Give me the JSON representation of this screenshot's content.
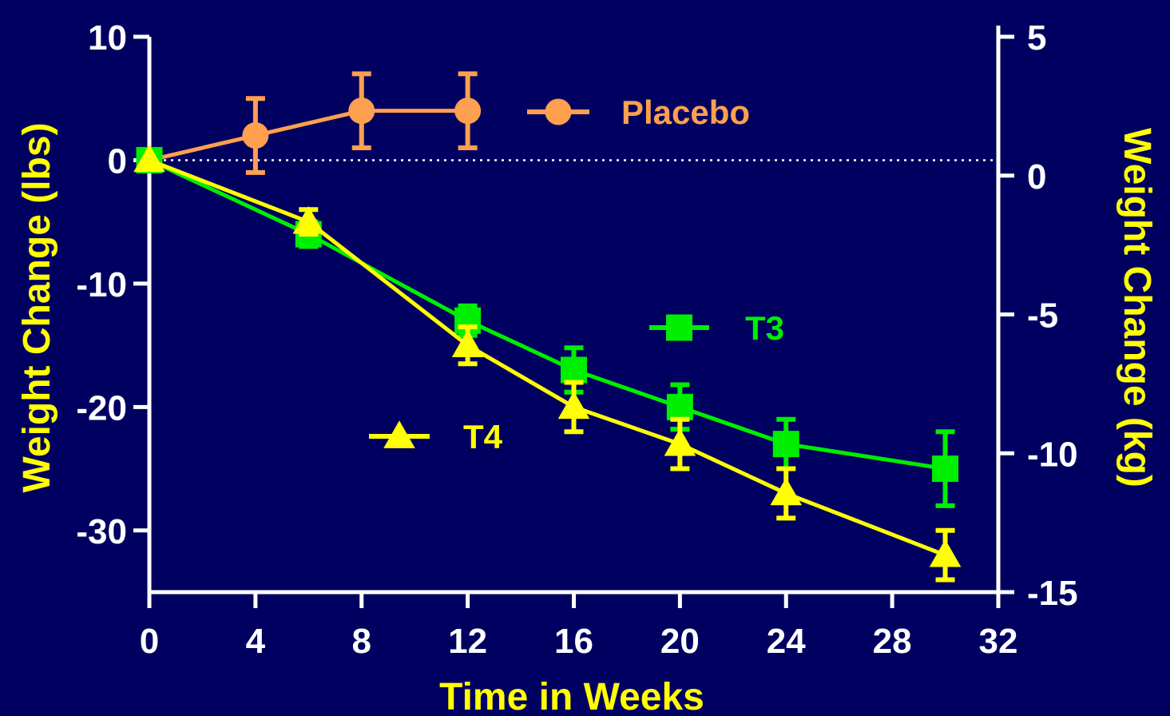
{
  "chart_data": {
    "type": "line",
    "xlabel": "Time in Weeks",
    "ylabel": "Weight Change (lbs)",
    "y2label": "Weight Change (kg)",
    "xlim": [
      0,
      32
    ],
    "ylim": [
      -35,
      10
    ],
    "y2lim": [
      -15,
      5
    ],
    "x_ticks": [
      0,
      4,
      8,
      12,
      16,
      20,
      24,
      28,
      32
    ],
    "y_ticks": [
      10,
      0,
      -10,
      -20,
      -30
    ],
    "y2_ticks": [
      5,
      0,
      -5,
      -10,
      -15
    ],
    "reference_line_y": 0,
    "colors": {
      "background": "#000060",
      "axis": "#ffffff",
      "placebo": "#ffa050",
      "t3": "#00ee00",
      "t4": "#ffff00"
    },
    "series": [
      {
        "name": "Placebo",
        "marker": "circle",
        "x": [
          0,
          4,
          8,
          12
        ],
        "y": [
          0,
          2,
          4,
          4
        ],
        "err": [
          0,
          3,
          3,
          3
        ]
      },
      {
        "name": "T3",
        "marker": "square",
        "x": [
          0,
          6,
          12,
          16,
          20,
          24,
          30
        ],
        "y": [
          0,
          -6,
          -13,
          -17,
          -20,
          -23,
          -25
        ],
        "err": [
          0,
          1,
          1.2,
          1.8,
          1.8,
          2,
          3
        ]
      },
      {
        "name": "T4",
        "marker": "triangle",
        "x": [
          0,
          6,
          12,
          16,
          20,
          24,
          30
        ],
        "y": [
          0,
          -5,
          -15,
          -20,
          -23,
          -27,
          -32
        ],
        "err": [
          0,
          1,
          1.5,
          2,
          2,
          2,
          2
        ]
      }
    ]
  }
}
